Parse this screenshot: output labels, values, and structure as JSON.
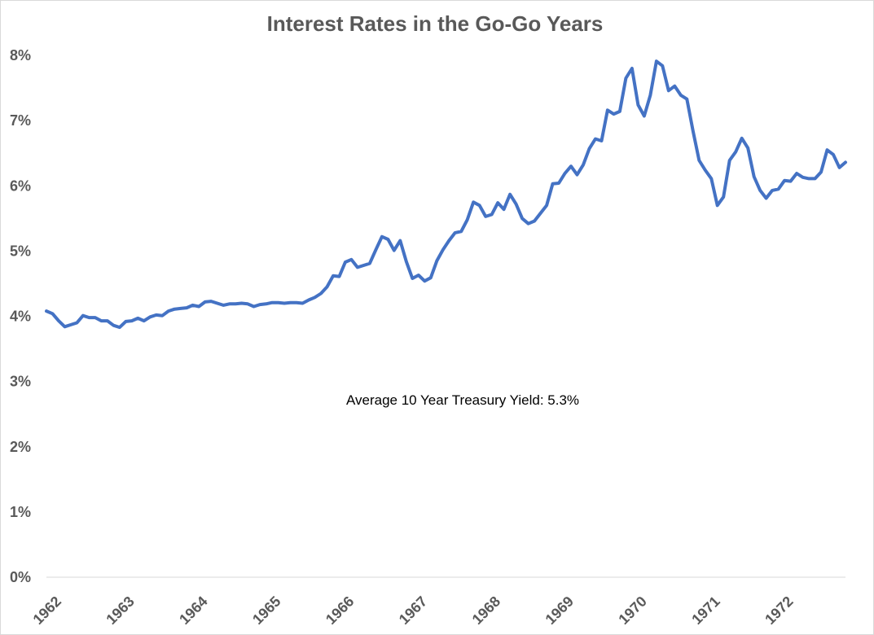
{
  "chart_data": {
    "type": "line",
    "title": "Interest Rates in the Go-Go Years",
    "xlabel": "",
    "ylabel": "",
    "x_tick_labels": [
      "1962",
      "1963",
      "1964",
      "1965",
      "1966",
      "1967",
      "1968",
      "1969",
      "1970",
      "1971",
      "1972"
    ],
    "y_tick_labels": [
      "0%",
      "1%",
      "2%",
      "3%",
      "4%",
      "5%",
      "6%",
      "7%",
      "8%"
    ],
    "ylim": [
      0,
      8
    ],
    "grid": false,
    "legend": "none",
    "annotation": "Average 10 Year Treasury Yield: 5.3%",
    "series": [
      {
        "color": "#4472c4",
        "x_start": "1962-01",
        "frequency": "monthly",
        "values": [
          4.08,
          4.04,
          3.93,
          3.84,
          3.87,
          3.9,
          4.01,
          3.98,
          3.98,
          3.93,
          3.93,
          3.86,
          3.83,
          3.92,
          3.93,
          3.97,
          3.93,
          3.99,
          4.02,
          4.01,
          4.08,
          4.11,
          4.12,
          4.13,
          4.17,
          4.15,
          4.22,
          4.23,
          4.2,
          4.17,
          4.19,
          4.19,
          4.2,
          4.19,
          4.15,
          4.18,
          4.19,
          4.21,
          4.21,
          4.2,
          4.21,
          4.21,
          4.2,
          4.25,
          4.29,
          4.35,
          4.45,
          4.62,
          4.61,
          4.83,
          4.87,
          4.75,
          4.78,
          4.81,
          5.02,
          5.22,
          5.18,
          5.01,
          5.16,
          4.84,
          4.58,
          4.63,
          4.54,
          4.59,
          4.85,
          5.02,
          5.16,
          5.28,
          5.3,
          5.48,
          5.75,
          5.7,
          5.53,
          5.56,
          5.74,
          5.64,
          5.87,
          5.72,
          5.5,
          5.42,
          5.46,
          5.58,
          5.7,
          6.03,
          6.04,
          6.19,
          6.3,
          6.17,
          6.32,
          6.57,
          6.72,
          6.69,
          7.16,
          7.1,
          7.14,
          7.65,
          7.8,
          7.24,
          7.07,
          7.39,
          7.91,
          7.84,
          7.46,
          7.53,
          7.39,
          7.33,
          6.84,
          6.39,
          6.24,
          6.11,
          5.7,
          5.83,
          6.39,
          6.52,
          6.73,
          6.58,
          6.14,
          5.93,
          5.81,
          5.93,
          5.95,
          6.08,
          6.07,
          6.19,
          6.13,
          6.11,
          6.11,
          6.21,
          6.55,
          6.48,
          6.28,
          6.36
        ]
      }
    ]
  }
}
